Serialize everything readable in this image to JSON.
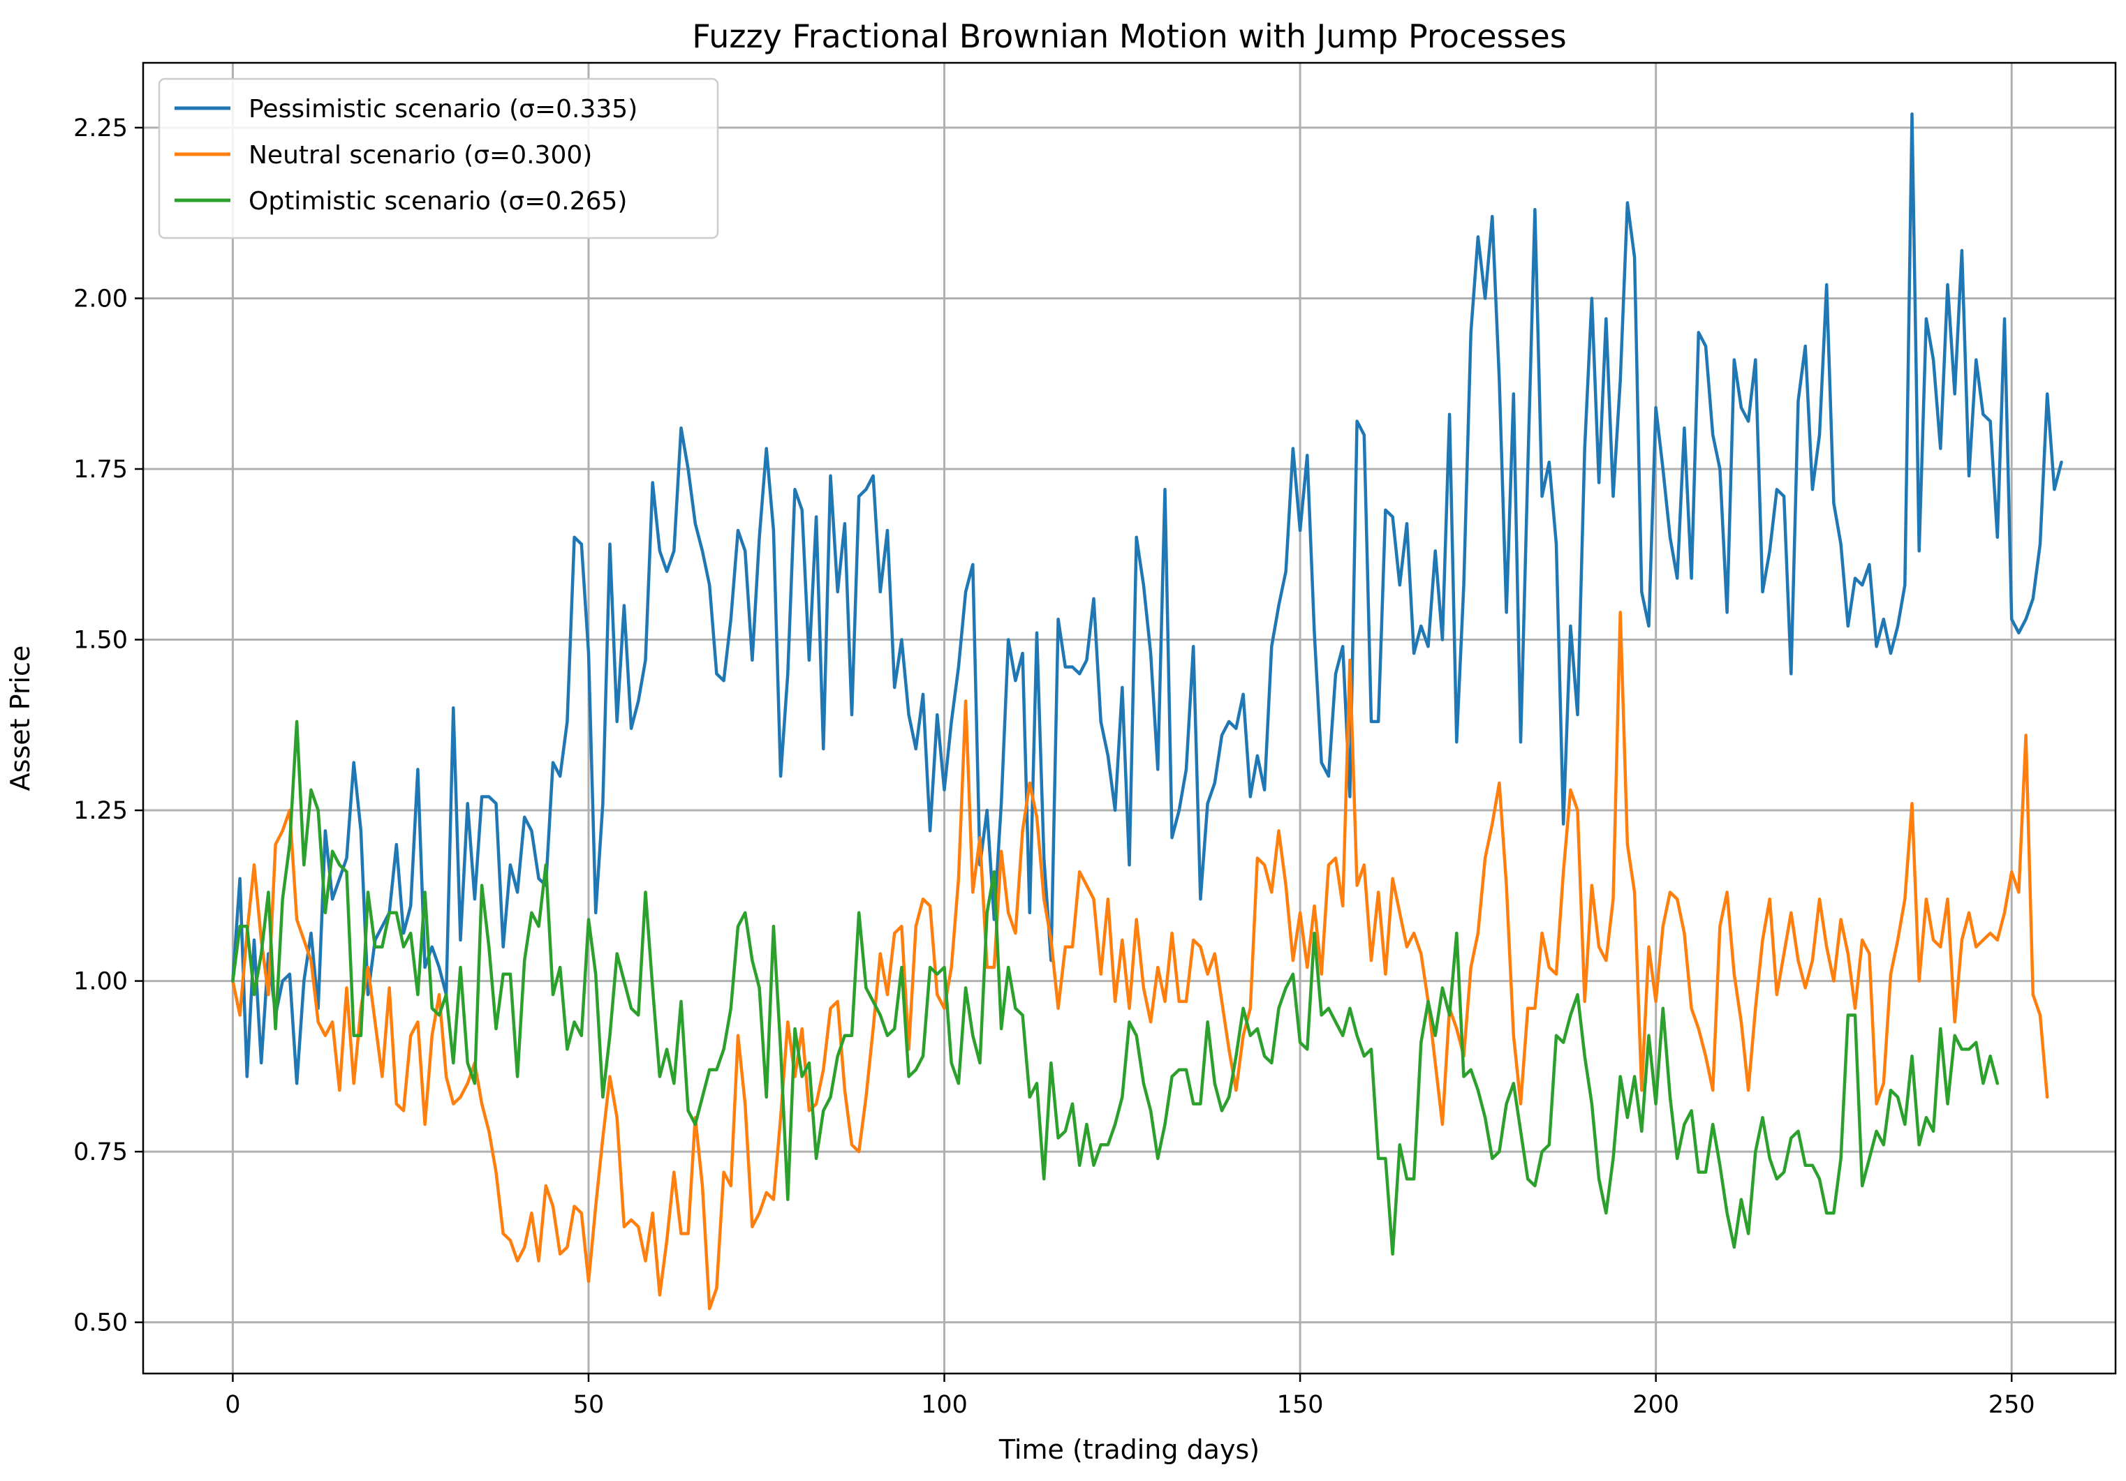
{
  "chart_data": {
    "type": "line",
    "title": "Fuzzy Fractional Brownian Motion with Jump Processes",
    "xlabel": "Time (trading days)",
    "ylabel": "Asset Price",
    "xlim": [
      -12.6,
      264.6
    ],
    "ylim": [
      0.425,
      2.345
    ],
    "xticks": [
      0,
      50,
      100,
      150,
      200,
      250
    ],
    "xtick_labels": [
      "0",
      "50",
      "100",
      "150",
      "200",
      "250"
    ],
    "yticks": [
      0.5,
      0.75,
      1.0,
      1.25,
      1.5,
      1.75,
      2.0,
      2.25
    ],
    "ytick_labels": [
      "0.50",
      "0.75",
      "1.00",
      "1.25",
      "1.50",
      "1.75",
      "2.00",
      "2.25"
    ],
    "grid": true,
    "legend_position": "upper-left",
    "series": [
      {
        "name": "Pessimistic scenario (σ=0.335)",
        "color": "#1f77b4",
        "values": [
          1.0,
          1.15,
          0.86,
          1.06,
          0.88,
          1.04,
          0.95,
          1.0,
          1.01,
          0.85,
          1.0,
          1.07,
          0.96,
          1.22,
          1.12,
          1.15,
          1.18,
          1.32,
          1.22,
          0.98,
          1.06,
          1.08,
          1.1,
          1.2,
          1.07,
          1.11,
          1.31,
          1.02,
          1.05,
          1.02,
          0.98,
          1.4,
          1.06,
          1.26,
          1.12,
          1.27,
          1.27,
          1.26,
          1.05,
          1.17,
          1.13,
          1.24,
          1.22,
          1.15,
          1.14,
          1.32,
          1.3,
          1.38,
          1.65,
          1.64,
          1.48,
          1.1,
          1.26,
          1.64,
          1.38,
          1.55,
          1.37,
          1.41,
          1.47,
          1.73,
          1.63,
          1.6,
          1.63,
          1.81,
          1.75,
          1.67,
          1.63,
          1.58,
          1.45,
          1.44,
          1.53,
          1.66,
          1.63,
          1.47,
          1.65,
          1.78,
          1.66,
          1.3,
          1.45,
          1.72,
          1.69,
          1.47,
          1.68,
          1.34,
          1.74,
          1.57,
          1.67,
          1.39,
          1.71,
          1.72,
          1.74,
          1.57,
          1.66,
          1.43,
          1.5,
          1.39,
          1.34,
          1.42,
          1.22,
          1.39,
          1.28,
          1.38,
          1.46,
          1.57,
          1.61,
          1.17,
          1.25,
          1.09,
          1.26,
          1.5,
          1.44,
          1.48,
          1.1,
          1.51,
          1.18,
          1.03,
          1.53,
          1.46,
          1.46,
          1.45,
          1.47,
          1.56,
          1.38,
          1.33,
          1.25,
          1.43,
          1.17,
          1.65,
          1.58,
          1.48,
          1.31,
          1.72,
          1.21,
          1.25,
          1.31,
          1.49,
          1.12,
          1.26,
          1.29,
          1.36,
          1.38,
          1.37,
          1.42,
          1.27,
          1.33,
          1.28,
          1.49,
          1.55,
          1.6,
          1.78,
          1.66,
          1.77,
          1.51,
          1.32,
          1.3,
          1.45,
          1.49,
          1.27,
          1.82,
          1.8,
          1.38,
          1.38,
          1.69,
          1.68,
          1.58,
          1.67,
          1.48,
          1.52,
          1.49,
          1.63,
          1.5,
          1.83,
          1.35,
          1.58,
          1.95,
          2.09,
          2.0,
          2.12,
          1.88,
          1.54,
          1.86,
          1.35,
          1.75,
          2.13,
          1.71,
          1.76,
          1.64,
          1.23,
          1.52,
          1.39,
          1.78,
          2.0,
          1.73,
          1.97,
          1.71,
          1.88,
          2.14,
          2.06,
          1.57,
          1.52,
          1.84,
          1.75,
          1.65,
          1.59,
          1.81,
          1.59,
          1.95,
          1.93,
          1.8,
          1.75,
          1.54,
          1.91,
          1.84,
          1.82,
          1.91,
          1.57,
          1.63,
          1.72,
          1.71,
          1.45,
          1.85,
          1.93,
          1.72,
          1.8,
          2.02,
          1.7,
          1.64,
          1.52,
          1.59,
          1.58,
          1.61,
          1.49,
          1.53,
          1.48,
          1.52,
          1.58,
          2.27,
          1.63,
          1.97,
          1.91,
          1.78,
          2.02,
          1.86,
          2.07,
          1.74,
          1.91,
          1.83,
          1.82,
          1.65,
          1.97,
          1.53,
          1.51,
          1.53,
          1.56,
          1.64,
          1.86,
          1.72,
          1.76
        ]
      },
      {
        "name": "Neutral scenario (σ=0.300)",
        "color": "#ff7f0e",
        "values": [
          1.0,
          0.95,
          1.07,
          1.17,
          1.06,
          0.98,
          1.2,
          1.22,
          1.25,
          1.09,
          1.06,
          1.03,
          0.94,
          0.92,
          0.94,
          0.84,
          0.99,
          0.85,
          0.96,
          1.02,
          0.94,
          0.86,
          0.99,
          0.82,
          0.81,
          0.92,
          0.94,
          0.79,
          0.92,
          0.98,
          0.86,
          0.82,
          0.83,
          0.85,
          0.88,
          0.82,
          0.78,
          0.72,
          0.63,
          0.62,
          0.59,
          0.61,
          0.66,
          0.59,
          0.7,
          0.67,
          0.6,
          0.61,
          0.67,
          0.66,
          0.56,
          0.67,
          0.77,
          0.86,
          0.8,
          0.64,
          0.65,
          0.64,
          0.59,
          0.66,
          0.54,
          0.62,
          0.72,
          0.63,
          0.63,
          0.8,
          0.7,
          0.52,
          0.55,
          0.72,
          0.7,
          0.92,
          0.82,
          0.64,
          0.66,
          0.69,
          0.68,
          0.8,
          0.94,
          0.86,
          0.93,
          0.81,
          0.82,
          0.87,
          0.96,
          0.97,
          0.84,
          0.76,
          0.75,
          0.83,
          0.93,
          1.04,
          0.98,
          1.07,
          1.08,
          0.9,
          1.08,
          1.12,
          1.11,
          0.98,
          0.96,
          1.02,
          1.15,
          1.41,
          1.13,
          1.21,
          1.02,
          1.02,
          1.19,
          1.1,
          1.07,
          1.22,
          1.29,
          1.24,
          1.12,
          1.06,
          0.96,
          1.05,
          1.05,
          1.16,
          1.14,
          1.12,
          1.01,
          1.12,
          0.97,
          1.06,
          0.96,
          1.09,
          0.99,
          0.94,
          1.02,
          0.97,
          1.07,
          0.97,
          0.97,
          1.06,
          1.05,
          1.01,
          1.04,
          0.97,
          0.9,
          0.84,
          0.92,
          0.96,
          1.18,
          1.17,
          1.13,
          1.22,
          1.14,
          1.03,
          1.1,
          1.02,
          1.11,
          1.01,
          1.17,
          1.18,
          1.11,
          1.47,
          1.14,
          1.17,
          1.03,
          1.13,
          1.01,
          1.15,
          1.1,
          1.05,
          1.07,
          1.04,
          0.97,
          0.88,
          0.79,
          0.96,
          0.93,
          0.89,
          1.02,
          1.07,
          1.18,
          1.23,
          1.29,
          1.14,
          0.92,
          0.82,
          0.96,
          0.96,
          1.07,
          1.02,
          1.01,
          1.16,
          1.28,
          1.25,
          0.97,
          1.14,
          1.05,
          1.03,
          1.12,
          1.54,
          1.2,
          1.13,
          0.84,
          1.05,
          0.97,
          1.08,
          1.13,
          1.12,
          1.07,
          0.96,
          0.93,
          0.89,
          0.84,
          1.08,
          1.13,
          1.01,
          0.94,
          0.84,
          0.96,
          1.06,
          1.12,
          0.98,
          1.04,
          1.1,
          1.03,
          0.99,
          1.03,
          1.12,
          1.05,
          1.0,
          1.09,
          1.04,
          0.96,
          1.06,
          1.04,
          0.82,
          0.85,
          1.01,
          1.06,
          1.12,
          1.26,
          1.0,
          1.12,
          1.06,
          1.05,
          1.12,
          0.94,
          1.06,
          1.1,
          1.05,
          1.06,
          1.07,
          1.06,
          1.1,
          1.16,
          1.13,
          1.36,
          0.98,
          0.95,
          0.83
        ]
      },
      {
        "name": "Optimistic scenario (σ=0.265)",
        "color": "#2ca02c",
        "values": [
          1.0,
          1.08,
          1.08,
          0.98,
          1.04,
          1.13,
          0.93,
          1.12,
          1.2,
          1.38,
          1.17,
          1.28,
          1.25,
          1.1,
          1.19,
          1.17,
          1.16,
          0.92,
          0.92,
          1.13,
          1.05,
          1.05,
          1.1,
          1.1,
          1.05,
          1.07,
          0.98,
          1.13,
          0.96,
          0.95,
          0.98,
          0.88,
          1.02,
          0.88,
          0.85,
          1.14,
          1.05,
          0.93,
          1.01,
          1.01,
          0.86,
          1.03,
          1.1,
          1.08,
          1.17,
          0.98,
          1.02,
          0.9,
          0.94,
          0.92,
          1.09,
          1.01,
          0.83,
          0.92,
          1.04,
          1.0,
          0.96,
          0.95,
          1.13,
          0.99,
          0.86,
          0.9,
          0.85,
          0.97,
          0.81,
          0.79,
          0.83,
          0.87,
          0.87,
          0.9,
          0.96,
          1.08,
          1.1,
          1.03,
          0.99,
          0.83,
          1.08,
          0.9,
          0.68,
          0.93,
          0.86,
          0.88,
          0.74,
          0.81,
          0.83,
          0.89,
          0.92,
          0.92,
          1.1,
          0.99,
          0.97,
          0.95,
          0.92,
          0.93,
          1.02,
          0.86,
          0.87,
          0.89,
          1.02,
          1.01,
          1.02,
          0.88,
          0.85,
          0.99,
          0.92,
          0.88,
          1.1,
          1.16,
          0.93,
          1.02,
          0.96,
          0.95,
          0.83,
          0.85,
          0.71,
          0.88,
          0.77,
          0.78,
          0.82,
          0.73,
          0.79,
          0.73,
          0.76,
          0.76,
          0.79,
          0.83,
          0.94,
          0.92,
          0.85,
          0.81,
          0.74,
          0.79,
          0.86,
          0.87,
          0.87,
          0.82,
          0.82,
          0.94,
          0.85,
          0.81,
          0.83,
          0.89,
          0.96,
          0.92,
          0.93,
          0.89,
          0.88,
          0.96,
          0.99,
          1.01,
          0.91,
          0.9,
          1.07,
          0.95,
          0.96,
          0.94,
          0.92,
          0.96,
          0.92,
          0.89,
          0.9,
          0.74,
          0.74,
          0.6,
          0.76,
          0.71,
          0.71,
          0.91,
          0.97,
          0.92,
          0.99,
          0.95,
          1.07,
          0.86,
          0.87,
          0.84,
          0.8,
          0.74,
          0.75,
          0.82,
          0.85,
          0.78,
          0.71,
          0.7,
          0.75,
          0.76,
          0.92,
          0.91,
          0.95,
          0.98,
          0.89,
          0.82,
          0.71,
          0.66,
          0.74,
          0.86,
          0.8,
          0.86,
          0.78,
          0.92,
          0.82,
          0.96,
          0.83,
          0.74,
          0.79,
          0.81,
          0.72,
          0.72,
          0.79,
          0.73,
          0.66,
          0.61,
          0.68,
          0.63,
          0.75,
          0.8,
          0.74,
          0.71,
          0.72,
          0.77,
          0.78,
          0.73,
          0.73,
          0.71,
          0.66,
          0.66,
          0.74,
          0.95,
          0.95,
          0.7,
          0.74,
          0.78,
          0.76,
          0.84,
          0.83,
          0.79,
          0.89,
          0.76,
          0.8,
          0.78,
          0.93,
          0.82,
          0.92,
          0.9,
          0.9,
          0.91,
          0.85,
          0.89,
          0.85
        ]
      }
    ]
  }
}
